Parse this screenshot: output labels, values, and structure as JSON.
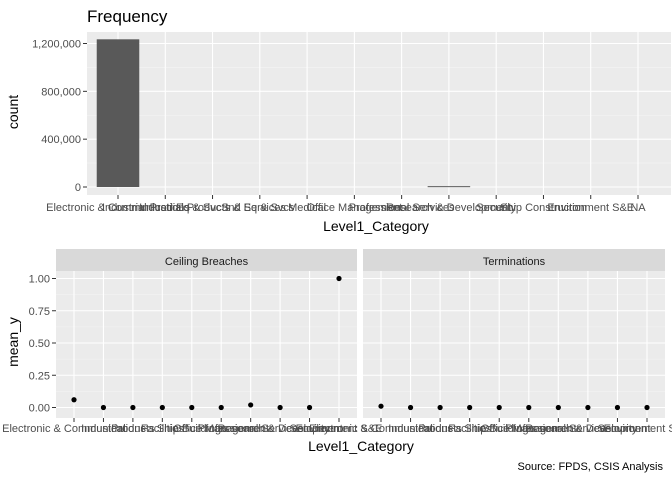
{
  "chart_data": [
    {
      "type": "bar",
      "title": "Frequency",
      "xlabel": "Level1_Category",
      "ylabel": "count",
      "ylim": [
        0,
        1300000
      ],
      "y_ticks": [
        "0",
        "400,000",
        "800,000",
        "1,200,000"
      ],
      "y_tick_values": [
        0,
        400000,
        800000,
        1200000
      ],
      "bar_color": "#595959",
      "categories": [
        "Electronic & Communications",
        "Industrial Prod Eq & SvcS",
        "Industrial Products & Services",
        "Ind Eq & Svcs",
        "Medical",
        "Office Management",
        "Professional Services",
        "Research & Development",
        "Security",
        "Ship Construction",
        "Environment S&E",
        "NA"
      ],
      "values": [
        1235000,
        0,
        0,
        0,
        0,
        0,
        0,
        7000,
        0,
        0,
        0,
        0
      ]
    },
    {
      "type": "scatter",
      "xlabel": "Level1_Category",
      "ylabel": "mean_y",
      "ylim": [
        -0.03,
        1.06
      ],
      "y_ticks": [
        "0.00",
        "0.25",
        "0.50",
        "0.75",
        "1.00"
      ],
      "y_tick_values": [
        0,
        0.25,
        0.5,
        0.75,
        1.0
      ],
      "point_color": "#000000",
      "panels": [
        {
          "strip": "Ceiling Breaches",
          "categories": [
            "Electronic & Communications",
            "Industrial",
            "Products",
            "Facilities",
            "Ship Buildings",
            "Office Management",
            "Professional Services",
            "Research & Development",
            "Security",
            "Environment S&E"
          ],
          "values": [
            0.06,
            0.0,
            0.0,
            0.0,
            0.0,
            0.0,
            0.02,
            0.0,
            0.0,
            1.0
          ]
        },
        {
          "strip": "Terminations",
          "categories": [
            "Electronic & Communications",
            "Industrial",
            "Products",
            "Facilities",
            "Ship Buildings",
            "Office Management",
            "Professional Services",
            "Research & Development",
            "Security",
            "Environment S&E"
          ],
          "values": [
            0.01,
            0.0,
            0.0,
            0.0,
            0.0,
            0.0,
            0.0,
            0.0,
            0.0,
            0.0
          ]
        }
      ],
      "caption": "Source: FPDS, CSIS Analysis"
    }
  ]
}
